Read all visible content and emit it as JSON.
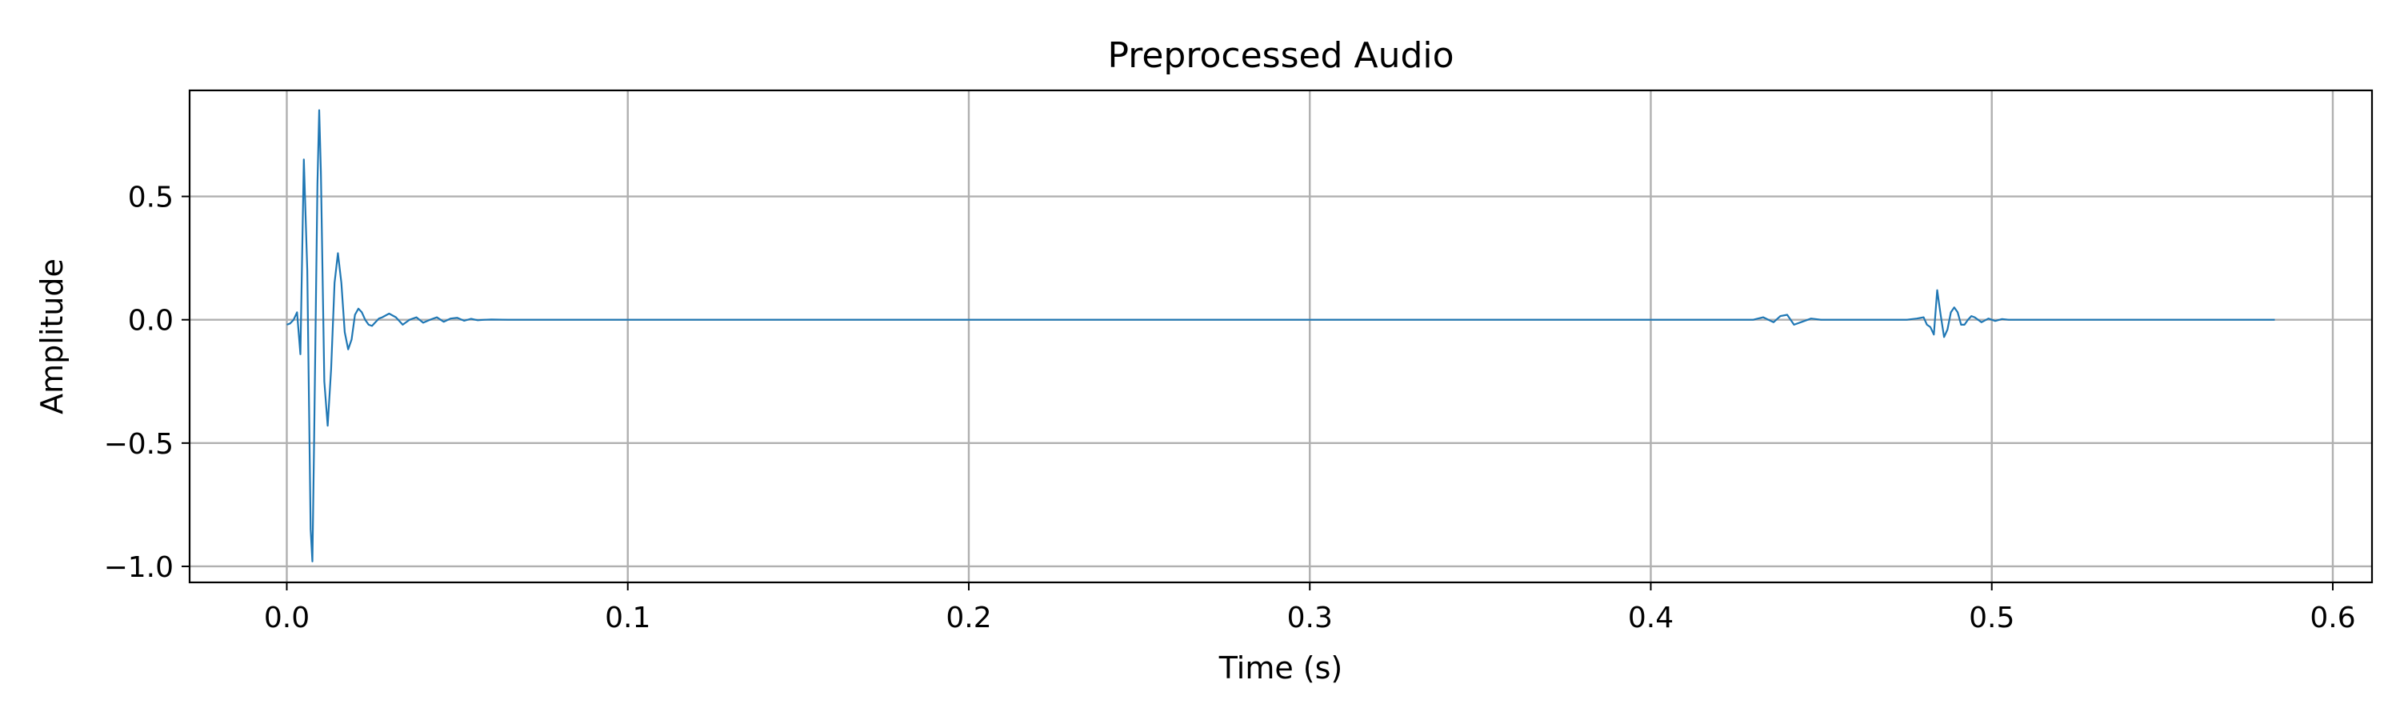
{
  "chart_data": {
    "type": "line",
    "title": "Preprocessed Audio",
    "xlabel": "Time (s)",
    "ylabel": "Amplitude",
    "xlim": [
      -0.0285,
      0.6115
    ],
    "ylim": [
      -1.065,
      0.93
    ],
    "xticks": [
      0.0,
      0.1,
      0.2,
      0.3,
      0.4,
      0.5,
      0.6
    ],
    "xtick_labels": [
      "0.0",
      "0.1",
      "0.2",
      "0.3",
      "0.4",
      "0.5",
      "0.6"
    ],
    "yticks": [
      -1.0,
      -0.5,
      0.0,
      0.5
    ],
    "ytick_labels": [
      "−1.0",
      "−0.5",
      "0.0",
      "0.5"
    ],
    "grid": true,
    "legend": "none",
    "line_color": "#1f77b4",
    "series": [
      {
        "x": [
          0.0,
          0.001,
          0.002,
          0.003,
          0.004,
          0.005,
          0.006,
          0.007,
          0.0075,
          0.008,
          0.009,
          0.0095,
          0.01,
          0.011,
          0.012,
          0.013,
          0.014,
          0.015,
          0.016,
          0.017,
          0.018,
          0.019,
          0.02,
          0.021,
          0.022,
          0.023,
          0.024,
          0.025,
          0.026,
          0.027,
          0.028,
          0.03,
          0.032,
          0.034,
          0.036,
          0.038,
          0.04,
          0.042,
          0.044,
          0.046,
          0.048,
          0.05,
          0.052,
          0.054,
          0.056,
          0.058,
          0.06,
          0.065,
          0.07,
          0.1,
          0.15,
          0.2,
          0.25,
          0.3,
          0.35,
          0.4,
          0.42,
          0.425,
          0.43,
          0.433,
          0.436,
          0.438,
          0.44,
          0.442,
          0.444,
          0.447,
          0.45,
          0.46,
          0.47,
          0.475,
          0.478,
          0.48,
          0.481,
          0.482,
          0.483,
          0.484,
          0.485,
          0.486,
          0.487,
          0.488,
          0.489,
          0.49,
          0.491,
          0.492,
          0.493,
          0.494,
          0.495,
          0.497,
          0.499,
          0.501,
          0.503,
          0.505,
          0.51,
          0.52,
          0.54,
          0.56,
          0.583
        ],
        "y": [
          -0.02,
          -0.015,
          0.0,
          0.03,
          -0.14,
          0.65,
          0.2,
          -0.85,
          -0.98,
          -0.5,
          0.55,
          0.85,
          0.6,
          -0.25,
          -0.43,
          -0.2,
          0.15,
          0.27,
          0.15,
          -0.05,
          -0.12,
          -0.08,
          0.02,
          0.045,
          0.03,
          0.0,
          -0.02,
          -0.025,
          -0.01,
          0.005,
          0.01,
          0.025,
          0.01,
          -0.02,
          0.0,
          0.01,
          -0.012,
          0.0,
          0.01,
          -0.008,
          0.005,
          0.008,
          -0.004,
          0.004,
          -0.002,
          0.0,
          0.001,
          0.0,
          0.0,
          0.0,
          0.0,
          0.0,
          0.0,
          0.0,
          0.0,
          0.0,
          0.0,
          0.0,
          0.0,
          0.01,
          -0.01,
          0.015,
          0.02,
          -0.02,
          -0.01,
          0.005,
          0.0,
          0.0,
          0.0,
          0.0,
          0.005,
          0.01,
          -0.02,
          -0.03,
          -0.06,
          0.12,
          0.02,
          -0.07,
          -0.04,
          0.03,
          0.05,
          0.03,
          -0.02,
          -0.02,
          0.0,
          0.015,
          0.01,
          -0.01,
          0.005,
          -0.005,
          0.003,
          0.0,
          0.0,
          0.0,
          0.0,
          0.0,
          0.0
        ]
      }
    ]
  }
}
